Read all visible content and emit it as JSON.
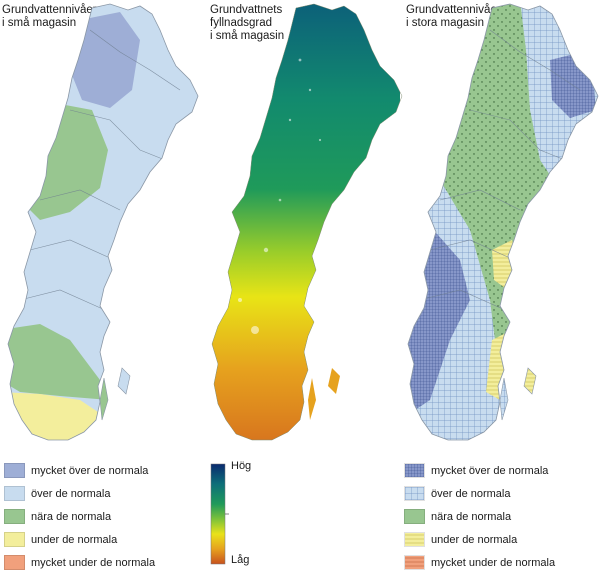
{
  "panels": [
    {
      "title": "Grundvattennivåer\ni små magasin"
    },
    {
      "title": "Grundvattnets\nfyllnadsgrad\ni små magasin"
    },
    {
      "title": "Grundvattennivåer\ni stora magasin"
    }
  ],
  "legend_small": [
    {
      "label": "mycket över de normala",
      "color": "#9eaed6"
    },
    {
      "label": "över de normala",
      "color": "#c8dcef"
    },
    {
      "label": "nära de normala",
      "color": "#98c690"
    },
    {
      "label": "under de normala",
      "color": "#f3ee9c"
    },
    {
      "label": "mycket under de normala",
      "color": "#f1a07c"
    }
  ],
  "gradient": {
    "high_label": "Hög",
    "low_label": "Låg",
    "colors": [
      "#0a2a6e",
      "#0d6f79",
      "#1f9a5a",
      "#7cc23a",
      "#e9e21a",
      "#e6a21e",
      "#c8521e"
    ]
  },
  "legend_large": [
    {
      "label": "mycket över de normala",
      "color": "#8797c9",
      "pattern": "dense-grid"
    },
    {
      "label": "över de normala",
      "color": "#c8dcef",
      "pattern": "grid"
    },
    {
      "label": "nära de normala",
      "color": "#98c690",
      "pattern": "none"
    },
    {
      "label": "under de normala",
      "color": "#f3ee9c",
      "pattern": "hlines"
    },
    {
      "label": "mycket under de normala",
      "color": "#f1a07c",
      "pattern": "hlines"
    }
  ]
}
